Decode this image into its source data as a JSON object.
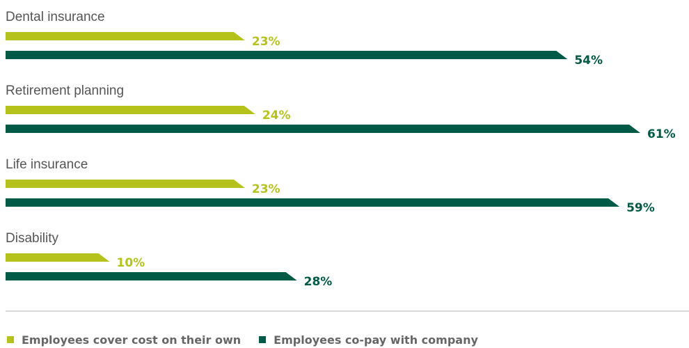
{
  "chart_data": {
    "type": "bar",
    "orientation": "horizontal",
    "categories": [
      "Dental insurance",
      "Retirement planning",
      "Life insurance",
      "Disability"
    ],
    "series": [
      {
        "name": "Employees cover cost on their own",
        "values": [
          23,
          24,
          23,
          10
        ],
        "color": "#b5c21c"
      },
      {
        "name": "Employees co-pay with company",
        "values": [
          54,
          61,
          59,
          28
        ],
        "color": "#005a46"
      }
    ],
    "value_suffix": "%",
    "xlim": [
      0,
      61
    ],
    "grid": false,
    "legend_position": "bottom-left"
  }
}
